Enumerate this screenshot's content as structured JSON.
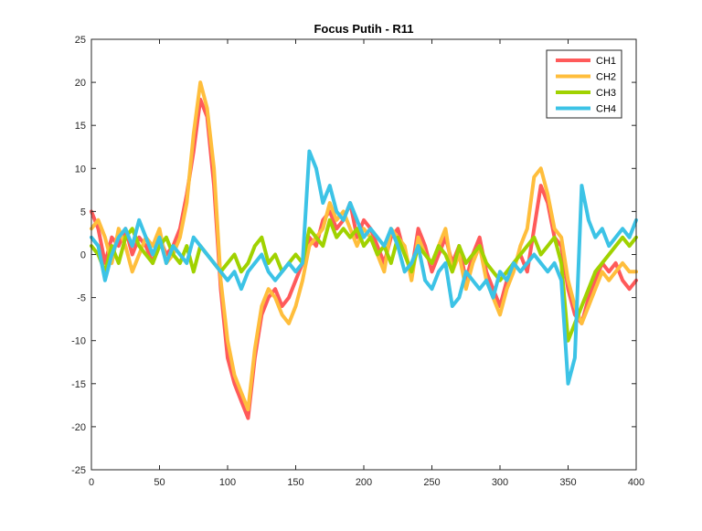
{
  "chart_data": {
    "type": "line",
    "title": "Focus Putih - R11",
    "xlabel": "",
    "ylabel": "",
    "xlim": [
      0,
      400
    ],
    "ylim": [
      -25,
      25
    ],
    "xticks": [
      "0",
      "50",
      "100",
      "150",
      "200",
      "250",
      "300",
      "350",
      "400"
    ],
    "yticks": [
      "-25",
      "-20",
      "-15",
      "-10",
      "-5",
      "0",
      "5",
      "10",
      "15",
      "20",
      "25"
    ],
    "grid": false,
    "legend_position": "top-right",
    "x": [
      0,
      5,
      10,
      15,
      20,
      25,
      30,
      35,
      40,
      45,
      50,
      55,
      60,
      65,
      70,
      75,
      80,
      85,
      90,
      95,
      100,
      105,
      110,
      115,
      120,
      125,
      130,
      135,
      140,
      145,
      150,
      155,
      160,
      165,
      170,
      175,
      180,
      185,
      190,
      195,
      200,
      205,
      210,
      215,
      220,
      225,
      230,
      235,
      240,
      245,
      250,
      255,
      260,
      265,
      270,
      275,
      280,
      285,
      290,
      295,
      300,
      305,
      310,
      315,
      320,
      325,
      330,
      335,
      340,
      345,
      350,
      355,
      360,
      365,
      370,
      375,
      380,
      385,
      390,
      395,
      400
    ],
    "series": [
      {
        "name": "CH1",
        "color": "#FF5A5A",
        "values": [
          5,
          3,
          -1,
          2,
          1,
          3,
          0,
          2,
          1,
          -1,
          2,
          0,
          1,
          3,
          7,
          12,
          18,
          16,
          8,
          -4,
          -12,
          -15,
          -17,
          -19,
          -12,
          -7,
          -5,
          -4,
          -6,
          -5,
          -3,
          -1,
          2,
          1,
          4,
          5,
          3,
          4,
          6,
          2,
          4,
          3,
          1,
          -1,
          2,
          3,
          0,
          -2,
          3,
          1,
          -2,
          0,
          2,
          -1,
          1,
          -3,
          0,
          2,
          -2,
          -4,
          -6,
          -3,
          -1,
          0,
          -2,
          3,
          8,
          6,
          2,
          1,
          -4,
          -7,
          -8,
          -5,
          -3,
          -1,
          -2,
          -1,
          -3,
          -4,
          -3
        ]
      },
      {
        "name": "CH2",
        "color": "#FFBE3C",
        "values": [
          3,
          4,
          2,
          -1,
          3,
          1,
          -2,
          0,
          2,
          1,
          3,
          -1,
          0,
          2,
          6,
          14,
          20,
          17,
          10,
          -3,
          -10,
          -14,
          -16,
          -18,
          -11,
          -6,
          -4,
          -5,
          -7,
          -8,
          -6,
          -3,
          1,
          2,
          3,
          6,
          4,
          5,
          3,
          1,
          3,
          2,
          0,
          -2,
          3,
          2,
          1,
          -3,
          2,
          0,
          -1,
          1,
          3,
          -2,
          0,
          -4,
          -1,
          1,
          -3,
          -5,
          -7,
          -4,
          -2,
          1,
          3,
          9,
          10,
          7,
          3,
          2,
          -3,
          -6,
          -8,
          -6,
          -4,
          -2,
          -3,
          -2,
          -1,
          -2,
          -2
        ]
      },
      {
        "name": "CH3",
        "color": "#A0D200",
        "values": [
          1,
          0,
          -2,
          1,
          -1,
          2,
          3,
          1,
          0,
          -1,
          1,
          2,
          0,
          -1,
          1,
          -2,
          1,
          0,
          -1,
          -2,
          -1,
          0,
          -2,
          -1,
          1,
          2,
          -1,
          0,
          -2,
          -1,
          0,
          -1,
          3,
          2,
          1,
          4,
          2,
          3,
          2,
          3,
          1,
          2,
          0,
          1,
          -1,
          2,
          0,
          -2,
          1,
          0,
          -1,
          1,
          0,
          -2,
          1,
          -1,
          0,
          1,
          -1,
          -2,
          -3,
          -2,
          -1,
          0,
          1,
          2,
          0,
          1,
          2,
          -1,
          -10,
          -8,
          -6,
          -4,
          -2,
          -1,
          0,
          1,
          2,
          1,
          2
        ]
      },
      {
        "name": "CH4",
        "color": "#3CC3E6",
        "values": [
          2,
          1,
          -3,
          0,
          2,
          3,
          1,
          4,
          2,
          0,
          2,
          -1,
          1,
          0,
          -1,
          2,
          1,
          0,
          -1,
          -2,
          -3,
          -2,
          -4,
          -2,
          -1,
          0,
          -2,
          -3,
          -2,
          -1,
          -2,
          -1,
          12,
          10,
          6,
          8,
          5,
          4,
          6,
          4,
          2,
          3,
          2,
          1,
          3,
          1,
          -2,
          -1,
          1,
          -3,
          -4,
          -2,
          -1,
          -6,
          -5,
          -2,
          -3,
          -4,
          -3,
          -5,
          -2,
          -3,
          -1,
          -2,
          -1,
          0,
          -1,
          -2,
          -1,
          -3,
          -15,
          -12,
          8,
          4,
          2,
          3,
          1,
          2,
          3,
          2,
          4
        ]
      }
    ]
  }
}
